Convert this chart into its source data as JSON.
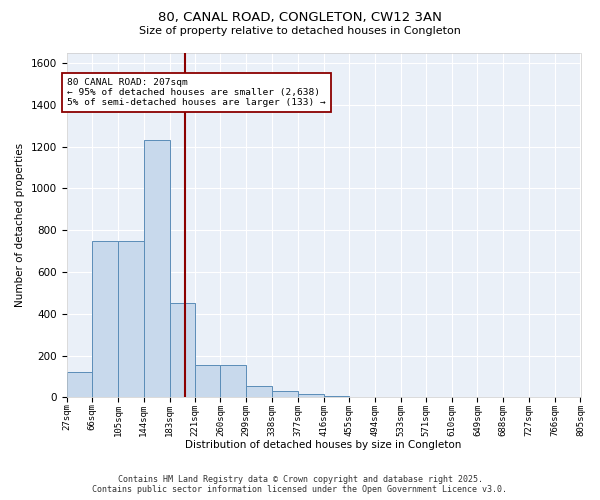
{
  "title1": "80, CANAL ROAD, CONGLETON, CW12 3AN",
  "title2": "Size of property relative to detached houses in Congleton",
  "xlabel": "Distribution of detached houses by size in Congleton",
  "ylabel": "Number of detached properties",
  "bin_edges": [
    27,
    66,
    105,
    144,
    183,
    221,
    260,
    299,
    338,
    377,
    416,
    455,
    494,
    533,
    571,
    610,
    649,
    688,
    727,
    766,
    805
  ],
  "bar_heights": [
    120,
    750,
    750,
    1230,
    450,
    155,
    155,
    55,
    30,
    15,
    5,
    0,
    0,
    0,
    0,
    0,
    0,
    0,
    0,
    0
  ],
  "bar_color": "#c8d9ec",
  "bar_edge_color": "#5b8db8",
  "property_size": 207,
  "vline_color": "#8b0000",
  "annotation_text": "80 CANAL ROAD: 207sqm\n← 95% of detached houses are smaller (2,638)\n5% of semi-detached houses are larger (133) →",
  "annotation_box_color": "#ffffff",
  "annotation_box_edge": "#8b0000",
  "ylim": [
    0,
    1650
  ],
  "yticks": [
    0,
    200,
    400,
    600,
    800,
    1000,
    1200,
    1400,
    1600
  ],
  "bg_color": "#eaf0f8",
  "grid_color": "#ffffff",
  "footnote": "Contains HM Land Registry data © Crown copyright and database right 2025.\nContains public sector information licensed under the Open Government Licence v3.0."
}
